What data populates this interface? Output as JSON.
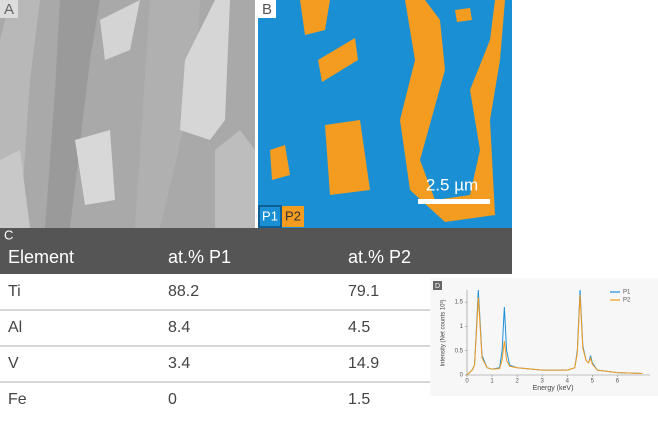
{
  "panels": {
    "a": {
      "label": "A"
    },
    "b": {
      "label": "B",
      "scale_bar": "2.5 µm",
      "legend": [
        "P1",
        "P2"
      ]
    }
  },
  "table": {
    "label": "C",
    "header": [
      "Element",
      "at.% P1",
      "at.% P2"
    ],
    "rows": [
      [
        "Ti",
        "88.2",
        "79.1"
      ],
      [
        "Al",
        "8.4",
        "4.5"
      ],
      [
        "V",
        "3.4",
        "14.9"
      ],
      [
        "Fe",
        "0",
        "1.5"
      ]
    ]
  },
  "chart_data": {
    "type": "line",
    "label": "D",
    "xlabel": "Energy (keV)",
    "ylabel": "Intensity (Net counts 10³)",
    "x": [
      0,
      0.2,
      0.3,
      0.4,
      0.45,
      0.5,
      0.6,
      0.8,
      1.0,
      1.3,
      1.4,
      1.49,
      1.58,
      1.7,
      2,
      3,
      4,
      4.3,
      4.4,
      4.51,
      4.62,
      4.75,
      4.85,
      4.93,
      5.0,
      5.2,
      6,
      7
    ],
    "series": [
      {
        "name": "P1",
        "color": "#1f8fd6",
        "values": [
          0,
          0.1,
          0.2,
          1.2,
          1.75,
          1.3,
          0.4,
          0.15,
          0.12,
          0.15,
          0.5,
          1.4,
          0.5,
          0.2,
          0.15,
          0.1,
          0.1,
          0.15,
          0.5,
          1.75,
          0.6,
          0.3,
          0.25,
          0.4,
          0.25,
          0.1,
          0.05,
          0.03
        ]
      },
      {
        "name": "P2",
        "color": "#f39c1f",
        "values": [
          0,
          0.1,
          0.2,
          1.1,
          1.6,
          1.2,
          0.35,
          0.15,
          0.12,
          0.13,
          0.3,
          0.7,
          0.3,
          0.18,
          0.15,
          0.1,
          0.1,
          0.15,
          0.45,
          1.65,
          0.55,
          0.3,
          0.25,
          0.35,
          0.22,
          0.1,
          0.05,
          0.03
        ]
      }
    ],
    "xlim": [
      0,
      7.3
    ],
    "xticks": [
      0,
      1,
      2,
      3,
      4,
      5,
      6
    ],
    "ylim": [
      0,
      1.75
    ],
    "yticks": [
      0,
      0.5,
      1,
      1.5
    ],
    "legend": "upper right"
  }
}
